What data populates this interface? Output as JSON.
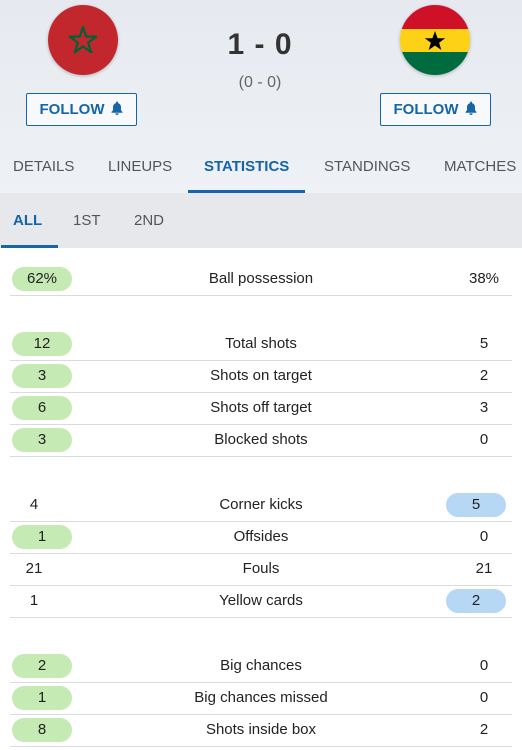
{
  "match": {
    "home_flag": "morocco-flag",
    "away_flag": "ghana-flag",
    "score": "1 - 0",
    "half_time": "(0 - 0)",
    "follow_label": "FOLLOW"
  },
  "tabs": [
    "DETAILS",
    "LINEUPS",
    "STATISTICS",
    "STANDINGS",
    "MATCHES"
  ],
  "active_tab": "STATISTICS",
  "periods": [
    "ALL",
    "1ST",
    "2ND"
  ],
  "active_period": "ALL",
  "stats": [
    {
      "label": "Ball possession",
      "home": "62%",
      "away": "38%",
      "leader": "home"
    },
    {
      "label": "Total shots",
      "home": "12",
      "away": "5",
      "leader": "home"
    },
    {
      "label": "Shots on target",
      "home": "3",
      "away": "2",
      "leader": "home"
    },
    {
      "label": "Shots off target",
      "home": "6",
      "away": "3",
      "leader": "home"
    },
    {
      "label": "Blocked shots",
      "home": "3",
      "away": "0",
      "leader": "home"
    },
    {
      "label": "Corner kicks",
      "home": "4",
      "away": "5",
      "leader": "away"
    },
    {
      "label": "Offsides",
      "home": "1",
      "away": "0",
      "leader": "home"
    },
    {
      "label": "Fouls",
      "home": "21",
      "away": "21",
      "leader": "none"
    },
    {
      "label": "Yellow cards",
      "home": "1",
      "away": "2",
      "leader": "away"
    },
    {
      "label": "Big chances",
      "home": "2",
      "away": "0",
      "leader": "home"
    },
    {
      "label": "Big chances missed",
      "home": "1",
      "away": "0",
      "leader": "home"
    },
    {
      "label": "Shots inside box",
      "home": "8",
      "away": "2",
      "leader": "home"
    }
  ],
  "colors": {
    "accent": "#1565a8",
    "home_highlight": "#c6eab3",
    "away_highlight": "#b7d8f5"
  }
}
